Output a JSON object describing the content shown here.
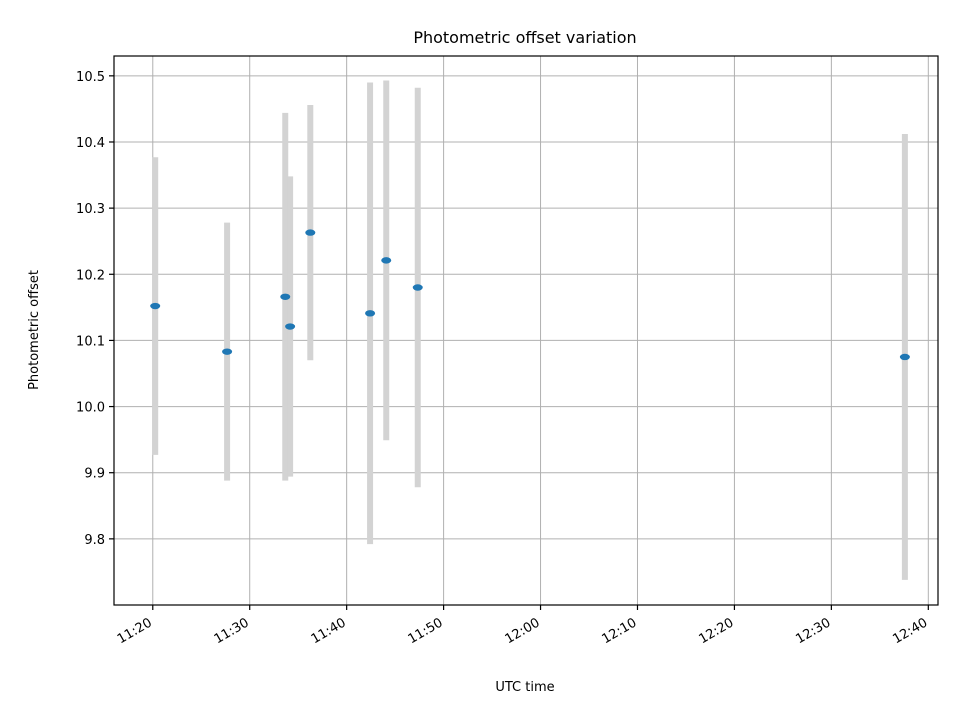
{
  "chart_data": {
    "type": "scatter",
    "title": "Photometric offset variation",
    "xlabel": "UTC time",
    "ylabel": "Photometric offset",
    "x_type": "time",
    "xlim": [
      "11:16",
      "12:41"
    ],
    "ylim": [
      9.7,
      10.53
    ],
    "x_ticks": [
      "11:20",
      "11:30",
      "11:40",
      "11:50",
      "12:00",
      "12:10",
      "12:20",
      "12:30",
      "12:40"
    ],
    "y_ticks": [
      9.8,
      9.9,
      10.0,
      10.1,
      10.2,
      10.3,
      10.4,
      10.5
    ],
    "y_tick_labels": [
      "9.8",
      "9.9",
      "10.0",
      "10.1",
      "10.2",
      "10.3",
      "10.4",
      "10.5"
    ],
    "grid": true,
    "legend": "none",
    "marker_color": "#1f77b4",
    "errorbar_color": "#d3d3d3",
    "points": [
      {
        "x": "11:20:15",
        "y": 10.152,
        "yerr": 0.225
      },
      {
        "x": "11:27:40",
        "y": 10.083,
        "yerr": 0.195
      },
      {
        "x": "11:33:40",
        "y": 10.166,
        "yerr": 0.278
      },
      {
        "x": "11:34:10",
        "y": 10.121,
        "yerr": 0.227
      },
      {
        "x": "11:36:15",
        "y": 10.263,
        "yerr": 0.193
      },
      {
        "x": "11:42:25",
        "y": 10.141,
        "yerr": 0.349
      },
      {
        "x": "11:44:05",
        "y": 10.221,
        "yerr": 0.272
      },
      {
        "x": "11:47:20",
        "y": 10.18,
        "yerr": 0.302
      },
      {
        "x": "12:37:35",
        "y": 10.075,
        "yerr": 0.337
      }
    ]
  }
}
